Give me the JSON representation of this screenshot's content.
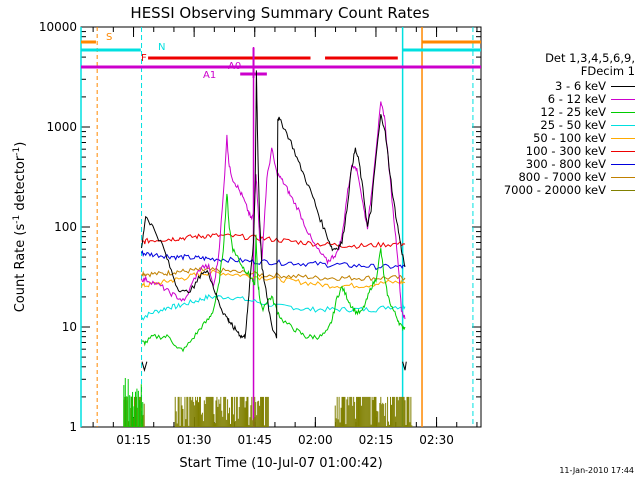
{
  "chart_data": {
    "type": "line",
    "title": "HESSI Observing Summary Count Rates",
    "xlabel": "Start Time (10-Jul-07 01:00:42)",
    "ylabel_main": "Count Rate (s",
    "ylabel_sup1": "-1",
    "ylabel_mid": " detector",
    "ylabel_sup2": "-1",
    "ylabel_end": ")",
    "y_scale": "log",
    "ylim": [
      1,
      10000
    ],
    "xlim": [
      1.0333,
      2.6833
    ],
    "y_ticks": [
      {
        "v": 1,
        "label": "1"
      },
      {
        "v": 10,
        "label": "10"
      },
      {
        "v": 100,
        "label": "100"
      },
      {
        "v": 1000,
        "label": "1000"
      },
      {
        "v": 10000,
        "label": "10000"
      }
    ],
    "x_ticks": [
      {
        "v": 1.25,
        "label": "01:15"
      },
      {
        "v": 1.5,
        "label": "01:30"
      },
      {
        "v": 1.75,
        "label": "01:45"
      },
      {
        "v": 2.0,
        "label": "02:00"
      },
      {
        "v": 2.25,
        "label": "02:15"
      },
      {
        "v": 2.5,
        "label": "02:30"
      }
    ],
    "legend_header": [
      "Det 1,3,4,5,6,9,",
      "FDecim 1"
    ],
    "series": [
      {
        "name": "3 - 6 keV",
        "color": "#000000",
        "points": [
          [
            1.283,
            60
          ],
          [
            1.3,
            130
          ],
          [
            1.33,
            100
          ],
          [
            1.37,
            65
          ],
          [
            1.4,
            40
          ],
          [
            1.43,
            25
          ],
          [
            1.46,
            22
          ],
          [
            1.5,
            25
          ],
          [
            1.53,
            35
          ],
          [
            1.56,
            35
          ],
          [
            1.58,
            25
          ],
          [
            1.6,
            18
          ],
          [
            1.62,
            14
          ],
          [
            1.64,
            12
          ],
          [
            1.65,
            11
          ],
          [
            1.66,
            10
          ],
          [
            1.68,
            9
          ],
          [
            1.695,
            8
          ],
          [
            1.71,
            8
          ],
          [
            1.72,
            14
          ],
          [
            1.735,
            40
          ],
          [
            1.745,
            70
          ],
          [
            1.752,
            300
          ],
          [
            1.757,
            3500
          ],
          [
            1.762,
            700
          ],
          [
            1.77,
            120
          ],
          [
            1.78,
            40
          ],
          [
            1.8,
            20
          ],
          [
            1.82,
            10
          ],
          [
            1.84,
            8
          ],
          [
            1.845,
            1250
          ],
          [
            1.85,
            1200
          ],
          [
            1.87,
            1000
          ],
          [
            1.9,
            700
          ],
          [
            1.93,
            450
          ],
          [
            1.96,
            300
          ],
          [
            1.99,
            200
          ],
          [
            2.02,
            120
          ],
          [
            2.05,
            80
          ],
          [
            2.07,
            60
          ],
          [
            2.09,
            62
          ],
          [
            2.11,
            70
          ],
          [
            2.13,
            150
          ],
          [
            2.15,
            400
          ],
          [
            2.165,
            600
          ],
          [
            2.18,
            450
          ],
          [
            2.2,
            200
          ],
          [
            2.215,
            100
          ],
          [
            2.23,
            150
          ],
          [
            2.25,
            500
          ],
          [
            2.27,
            1300
          ],
          [
            2.285,
            1000
          ],
          [
            2.3,
            500
          ],
          [
            2.32,
            200
          ],
          [
            2.34,
            100
          ],
          [
            2.355,
            60
          ],
          [
            2.37,
            40
          ]
        ]
      },
      {
        "name": "6 - 12 keV",
        "color": "#cc00cc",
        "points": [
          [
            1.283,
            30
          ],
          [
            1.3,
            30
          ],
          [
            1.33,
            28
          ],
          [
            1.37,
            25
          ],
          [
            1.4,
            22
          ],
          [
            1.43,
            20
          ],
          [
            1.46,
            18
          ],
          [
            1.5,
            30
          ],
          [
            1.53,
            40
          ],
          [
            1.56,
            40
          ],
          [
            1.58,
            25
          ],
          [
            1.6,
            50
          ],
          [
            1.62,
            200
          ],
          [
            1.635,
            800
          ],
          [
            1.645,
            400
          ],
          [
            1.66,
            300
          ],
          [
            1.68,
            250
          ],
          [
            1.7,
            200
          ],
          [
            1.72,
            150
          ],
          [
            1.735,
            120
          ],
          [
            1.748,
            140
          ],
          [
            1.755,
            350
          ],
          [
            1.762,
            180
          ],
          [
            1.77,
            80
          ],
          [
            1.78,
            50
          ],
          [
            1.8,
            300
          ],
          [
            1.82,
            600
          ],
          [
            1.84,
            350
          ],
          [
            1.86,
            300
          ],
          [
            1.88,
            250
          ],
          [
            1.9,
            200
          ],
          [
            1.93,
            150
          ],
          [
            1.96,
            100
          ],
          [
            1.99,
            70
          ],
          [
            2.02,
            55
          ],
          [
            2.05,
            45
          ],
          [
            2.07,
            50
          ],
          [
            2.09,
            55
          ],
          [
            2.11,
            80
          ],
          [
            2.13,
            200
          ],
          [
            2.15,
            400
          ],
          [
            2.165,
            420
          ],
          [
            2.18,
            300
          ],
          [
            2.2,
            150
          ],
          [
            2.215,
            100
          ],
          [
            2.23,
            200
          ],
          [
            2.25,
            600
          ],
          [
            2.27,
            1700
          ],
          [
            2.285,
            1300
          ],
          [
            2.3,
            500
          ],
          [
            2.32,
            150
          ],
          [
            2.34,
            50
          ],
          [
            2.355,
            15
          ],
          [
            2.37,
            12
          ]
        ]
      },
      {
        "name": "12 - 25 keV",
        "color": "#00cc00",
        "points": [
          [
            1.283,
            7
          ],
          [
            1.3,
            7
          ],
          [
            1.33,
            8
          ],
          [
            1.37,
            8
          ],
          [
            1.4,
            8
          ],
          [
            1.43,
            6
          ],
          [
            1.46,
            6
          ],
          [
            1.5,
            8
          ],
          [
            1.53,
            10
          ],
          [
            1.56,
            12
          ],
          [
            1.58,
            15
          ],
          [
            1.6,
            25
          ],
          [
            1.62,
            60
          ],
          [
            1.635,
            220
          ],
          [
            1.645,
            100
          ],
          [
            1.66,
            60
          ],
          [
            1.68,
            50
          ],
          [
            1.7,
            40
          ],
          [
            1.72,
            35
          ],
          [
            1.74,
            30
          ],
          [
            1.75,
            25
          ],
          [
            1.755,
            80
          ],
          [
            1.762,
            30
          ],
          [
            1.77,
            20
          ],
          [
            1.78,
            15
          ],
          [
            1.8,
            18
          ],
          [
            1.82,
            20
          ],
          [
            1.84,
            15
          ],
          [
            1.86,
            12
          ],
          [
            1.9,
            10
          ],
          [
            1.93,
            9
          ],
          [
            1.96,
            8
          ],
          [
            1.99,
            8
          ],
          [
            2.02,
            8
          ],
          [
            2.05,
            9
          ],
          [
            2.07,
            12
          ],
          [
            2.09,
            20
          ],
          [
            2.11,
            25
          ],
          [
            2.13,
            20
          ],
          [
            2.15,
            16
          ],
          [
            2.17,
            14
          ],
          [
            2.19,
            14
          ],
          [
            2.21,
            18
          ],
          [
            2.23,
            25
          ],
          [
            2.25,
            30
          ],
          [
            2.27,
            60
          ],
          [
            2.285,
            30
          ],
          [
            2.3,
            20
          ],
          [
            2.32,
            15
          ],
          [
            2.34,
            12
          ],
          [
            2.355,
            10
          ],
          [
            2.37,
            10
          ]
        ]
      },
      {
        "name": "25 - 50 keV",
        "color": "#00e0e0",
        "points": [
          [
            1.283,
            12
          ],
          [
            1.3,
            13
          ],
          [
            1.33,
            14
          ],
          [
            1.37,
            15
          ],
          [
            1.4,
            16
          ],
          [
            1.43,
            16
          ],
          [
            1.46,
            17
          ],
          [
            1.5,
            18
          ],
          [
            1.53,
            19
          ],
          [
            1.56,
            20
          ],
          [
            1.6,
            20
          ],
          [
            1.65,
            20
          ],
          [
            1.7,
            19
          ],
          [
            1.75,
            18
          ],
          [
            1.8,
            17
          ],
          [
            1.85,
            16
          ],
          [
            1.9,
            16
          ],
          [
            1.95,
            15
          ],
          [
            2.0,
            15
          ],
          [
            2.05,
            15
          ],
          [
            2.1,
            15
          ],
          [
            2.15,
            15
          ],
          [
            2.2,
            15
          ],
          [
            2.25,
            15
          ],
          [
            2.3,
            16
          ],
          [
            2.35,
            16
          ],
          [
            2.37,
            16
          ]
        ]
      },
      {
        "name": "50 - 100 keV",
        "color": "#ffaa00",
        "points": [
          [
            1.283,
            26
          ],
          [
            1.3,
            26
          ],
          [
            1.33,
            27
          ],
          [
            1.37,
            28
          ],
          [
            1.4,
            29
          ],
          [
            1.43,
            30
          ],
          [
            1.46,
            31
          ],
          [
            1.5,
            33
          ],
          [
            1.53,
            34
          ],
          [
            1.56,
            35
          ],
          [
            1.6,
            35
          ],
          [
            1.65,
            34
          ],
          [
            1.7,
            33
          ],
          [
            1.75,
            32
          ],
          [
            1.8,
            31
          ],
          [
            1.85,
            30
          ],
          [
            1.9,
            29
          ],
          [
            1.95,
            28
          ],
          [
            2.0,
            27
          ],
          [
            2.05,
            26
          ],
          [
            2.1,
            26
          ],
          [
            2.15,
            26
          ],
          [
            2.2,
            26
          ],
          [
            2.25,
            27
          ],
          [
            2.3,
            28
          ],
          [
            2.35,
            28
          ],
          [
            2.37,
            28
          ]
        ]
      },
      {
        "name": "100 - 300 keV",
        "color": "#ee0000",
        "points": [
          [
            1.283,
            70
          ],
          [
            1.3,
            72
          ],
          [
            1.33,
            74
          ],
          [
            1.37,
            75
          ],
          [
            1.4,
            76
          ],
          [
            1.43,
            77
          ],
          [
            1.46,
            78
          ],
          [
            1.5,
            80
          ],
          [
            1.53,
            81
          ],
          [
            1.56,
            82
          ],
          [
            1.6,
            82
          ],
          [
            1.65,
            81
          ],
          [
            1.7,
            80
          ],
          [
            1.75,
            78
          ],
          [
            1.8,
            76
          ],
          [
            1.85,
            74
          ],
          [
            1.9,
            72
          ],
          [
            1.95,
            70
          ],
          [
            2.0,
            68
          ],
          [
            2.05,
            67
          ],
          [
            2.1,
            66
          ],
          [
            2.15,
            65
          ],
          [
            2.2,
            65
          ],
          [
            2.25,
            66
          ],
          [
            2.3,
            67
          ],
          [
            2.35,
            68
          ],
          [
            2.37,
            68
          ]
        ]
      },
      {
        "name": "300 - 800 keV",
        "color": "#0000dd",
        "points": [
          [
            1.283,
            55
          ],
          [
            1.3,
            54
          ],
          [
            1.33,
            53
          ],
          [
            1.37,
            52
          ],
          [
            1.4,
            51
          ],
          [
            1.43,
            50
          ],
          [
            1.46,
            50
          ],
          [
            1.5,
            49
          ],
          [
            1.53,
            49
          ],
          [
            1.56,
            48
          ],
          [
            1.6,
            48
          ],
          [
            1.65,
            47
          ],
          [
            1.7,
            46
          ],
          [
            1.75,
            45
          ],
          [
            1.8,
            45
          ],
          [
            1.85,
            44
          ],
          [
            1.9,
            44
          ],
          [
            1.95,
            43
          ],
          [
            2.0,
            43
          ],
          [
            2.05,
            42
          ],
          [
            2.1,
            42
          ],
          [
            2.15,
            41
          ],
          [
            2.2,
            41
          ],
          [
            2.25,
            40
          ],
          [
            2.3,
            40
          ],
          [
            2.35,
            40
          ],
          [
            2.37,
            40
          ]
        ]
      },
      {
        "name": "800 - 7000 keV",
        "color": "#c08000",
        "points": [
          [
            1.283,
            35
          ],
          [
            1.3,
            34
          ],
          [
            1.33,
            34
          ],
          [
            1.37,
            34
          ],
          [
            1.4,
            35
          ],
          [
            1.43,
            36
          ],
          [
            1.46,
            36
          ],
          [
            1.5,
            37
          ],
          [
            1.53,
            37
          ],
          [
            1.56,
            37
          ],
          [
            1.6,
            37
          ],
          [
            1.65,
            36
          ],
          [
            1.7,
            35
          ],
          [
            1.75,
            34
          ],
          [
            1.8,
            33
          ],
          [
            1.85,
            33
          ],
          [
            1.9,
            32
          ],
          [
            1.95,
            32
          ],
          [
            2.0,
            31
          ],
          [
            2.05,
            31
          ],
          [
            2.1,
            31
          ],
          [
            2.15,
            31
          ],
          [
            2.2,
            31
          ],
          [
            2.25,
            31
          ],
          [
            2.3,
            31
          ],
          [
            2.35,
            31
          ],
          [
            2.37,
            31
          ]
        ]
      },
      {
        "name": "7000 - 20000 keV",
        "color": "#808000",
        "points": []
      }
    ],
    "annotations": [
      {
        "text": "S",
        "color": "#ff8800"
      },
      {
        "text": "N",
        "color": "#00e0e0"
      },
      {
        "text": "F",
        "color": "#ee0000"
      },
      {
        "text": "A0",
        "color": "#cc00cc"
      },
      {
        "text": "A1",
        "color": "#cc00cc"
      }
    ],
    "footer": "11-Jan-2010 17:44"
  }
}
